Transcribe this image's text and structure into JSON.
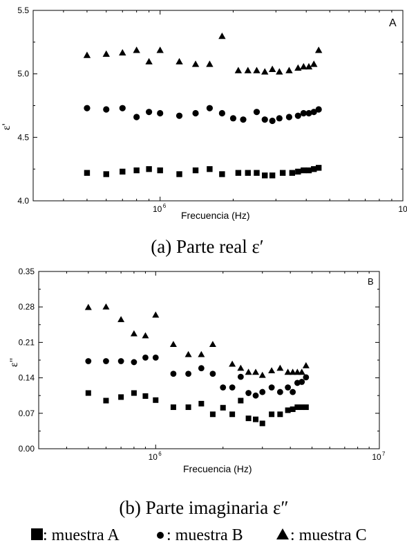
{
  "chart_data": [
    {
      "type": "scatter",
      "panel_label": "A",
      "xlabel": "Frecuencia (Hz)",
      "ylabel": "ε'",
      "x_scale": "log",
      "xlim": [
        300000,
        10000000
      ],
      "ylim": [
        4.0,
        5.5
      ],
      "yticks": [
        "4.0",
        "4.5",
        "5.0",
        "5.5"
      ],
      "xtick_labels": [
        {
          "x": 1000000,
          "base": "10",
          "exp": "6"
        },
        {
          "x": 10000000,
          "base": "10",
          "exp": ""
        }
      ],
      "caption": "(a) Parte real ε′",
      "series": [
        {
          "marker": "square",
          "points": [
            [
              500000,
              4.22
            ],
            [
              600000,
              4.21
            ],
            [
              700000,
              4.23
            ],
            [
              800000,
              4.24
            ],
            [
              900000,
              4.25
            ],
            [
              1000000,
              4.24
            ],
            [
              1200000,
              4.21
            ],
            [
              1400000,
              4.24
            ],
            [
              1600000,
              4.25
            ],
            [
              1800000,
              4.21
            ],
            [
              2100000,
              4.22
            ],
            [
              2300000,
              4.22
            ],
            [
              2500000,
              4.22
            ],
            [
              2700000,
              4.2
            ],
            [
              2900000,
              4.2
            ],
            [
              3200000,
              4.22
            ],
            [
              3500000,
              4.22
            ],
            [
              3700000,
              4.23
            ],
            [
              3900000,
              4.24
            ],
            [
              4100000,
              4.24
            ],
            [
              4300000,
              4.25
            ],
            [
              4500000,
              4.26
            ]
          ]
        },
        {
          "marker": "circle",
          "points": [
            [
              500000,
              4.73
            ],
            [
              600000,
              4.72
            ],
            [
              700000,
              4.73
            ],
            [
              800000,
              4.66
            ],
            [
              900000,
              4.7
            ],
            [
              1000000,
              4.69
            ],
            [
              1200000,
              4.67
            ],
            [
              1400000,
              4.69
            ],
            [
              1600000,
              4.73
            ],
            [
              1800000,
              4.69
            ],
            [
              2000000,
              4.65
            ],
            [
              2200000,
              4.64
            ],
            [
              2500000,
              4.7
            ],
            [
              2700000,
              4.64
            ],
            [
              2900000,
              4.63
            ],
            [
              3100000,
              4.65
            ],
            [
              3400000,
              4.66
            ],
            [
              3700000,
              4.67
            ],
            [
              3900000,
              4.69
            ],
            [
              4100000,
              4.69
            ],
            [
              4300000,
              4.7
            ],
            [
              4500000,
              4.72
            ]
          ]
        },
        {
          "marker": "triangle",
          "points": [
            [
              500000,
              5.15
            ],
            [
              600000,
              5.16
            ],
            [
              700000,
              5.17
            ],
            [
              800000,
              5.19
            ],
            [
              900000,
              5.1
            ],
            [
              1000000,
              5.19
            ],
            [
              1200000,
              5.1
            ],
            [
              1400000,
              5.08
            ],
            [
              1600000,
              5.08
            ],
            [
              1800000,
              5.3
            ],
            [
              2100000,
              5.03
            ],
            [
              2300000,
              5.03
            ],
            [
              2500000,
              5.03
            ],
            [
              2700000,
              5.02
            ],
            [
              2900000,
              5.04
            ],
            [
              3100000,
              5.02
            ],
            [
              3400000,
              5.03
            ],
            [
              3700000,
              5.05
            ],
            [
              3900000,
              5.06
            ],
            [
              4100000,
              5.06
            ],
            [
              4300000,
              5.08
            ],
            [
              4500000,
              5.19
            ]
          ]
        }
      ]
    },
    {
      "type": "scatter",
      "panel_label": "B",
      "xlabel": "Frecuencia (Hz)",
      "ylabel": "ε\"",
      "x_scale": "log",
      "xlim": [
        300000,
        10000000
      ],
      "ylim": [
        0.0,
        0.35
      ],
      "yticks": [
        "0.00",
        "0.07",
        "0.14",
        "0.21",
        "0.28",
        "0.35"
      ],
      "xtick_labels": [
        {
          "x": 1000000,
          "base": "10",
          "exp": "6"
        },
        {
          "x": 10000000,
          "base": "10",
          "exp": "7"
        }
      ],
      "caption": "(b) Parte imaginaria ε″",
      "series": [
        {
          "marker": "square",
          "points": [
            [
              500000,
              0.11
            ],
            [
              600000,
              0.095
            ],
            [
              700000,
              0.102
            ],
            [
              800000,
              0.11
            ],
            [
              900000,
              0.104
            ],
            [
              1000000,
              0.096
            ],
            [
              1200000,
              0.082
            ],
            [
              1400000,
              0.082
            ],
            [
              1600000,
              0.089
            ],
            [
              1800000,
              0.068
            ],
            [
              2000000,
              0.081
            ],
            [
              2200000,
              0.068
            ],
            [
              2400000,
              0.095
            ],
            [
              2600000,
              0.06
            ],
            [
              2800000,
              0.058
            ],
            [
              3000000,
              0.05
            ],
            [
              3300000,
              0.068
            ],
            [
              3600000,
              0.068
            ],
            [
              3900000,
              0.076
            ],
            [
              4100000,
              0.078
            ],
            [
              4300000,
              0.082
            ],
            [
              4500000,
              0.082
            ],
            [
              4700000,
              0.082
            ]
          ]
        },
        {
          "marker": "circle",
          "points": [
            [
              500000,
              0.173
            ],
            [
              600000,
              0.173
            ],
            [
              700000,
              0.173
            ],
            [
              800000,
              0.171
            ],
            [
              900000,
              0.18
            ],
            [
              1000000,
              0.18
            ],
            [
              1200000,
              0.148
            ],
            [
              1400000,
              0.148
            ],
            [
              1600000,
              0.159
            ],
            [
              1800000,
              0.148
            ],
            [
              2000000,
              0.121
            ],
            [
              2200000,
              0.121
            ],
            [
              2400000,
              0.142
            ],
            [
              2600000,
              0.11
            ],
            [
              2800000,
              0.105
            ],
            [
              3000000,
              0.112
            ],
            [
              3300000,
              0.121
            ],
            [
              3600000,
              0.112
            ],
            [
              3900000,
              0.121
            ],
            [
              4100000,
              0.112
            ],
            [
              4300000,
              0.13
            ],
            [
              4500000,
              0.132
            ],
            [
              4700000,
              0.141
            ]
          ]
        },
        {
          "marker": "triangle",
          "points": [
            [
              500000,
              0.28
            ],
            [
              600000,
              0.281
            ],
            [
              700000,
              0.256
            ],
            [
              800000,
              0.228
            ],
            [
              900000,
              0.224
            ],
            [
              1000000,
              0.265
            ],
            [
              1200000,
              0.207
            ],
            [
              1400000,
              0.187
            ],
            [
              1600000,
              0.187
            ],
            [
              1800000,
              0.207
            ],
            [
              2200000,
              0.168
            ],
            [
              2400000,
              0.16
            ],
            [
              2600000,
              0.152
            ],
            [
              2800000,
              0.152
            ],
            [
              3000000,
              0.146
            ],
            [
              3300000,
              0.155
            ],
            [
              3600000,
              0.16
            ],
            [
              3900000,
              0.152
            ],
            [
              4100000,
              0.152
            ],
            [
              4300000,
              0.152
            ],
            [
              4500000,
              0.152
            ],
            [
              4700000,
              0.165
            ]
          ]
        }
      ]
    }
  ],
  "legend": [
    {
      "marker": "square",
      "text": ": muestra A"
    },
    {
      "marker": "circle",
      "text": ": muestra B"
    },
    {
      "marker": "triangle",
      "text": ": muestra C"
    }
  ],
  "colors": {
    "ink": "#000000",
    "background": "#ffffff"
  }
}
